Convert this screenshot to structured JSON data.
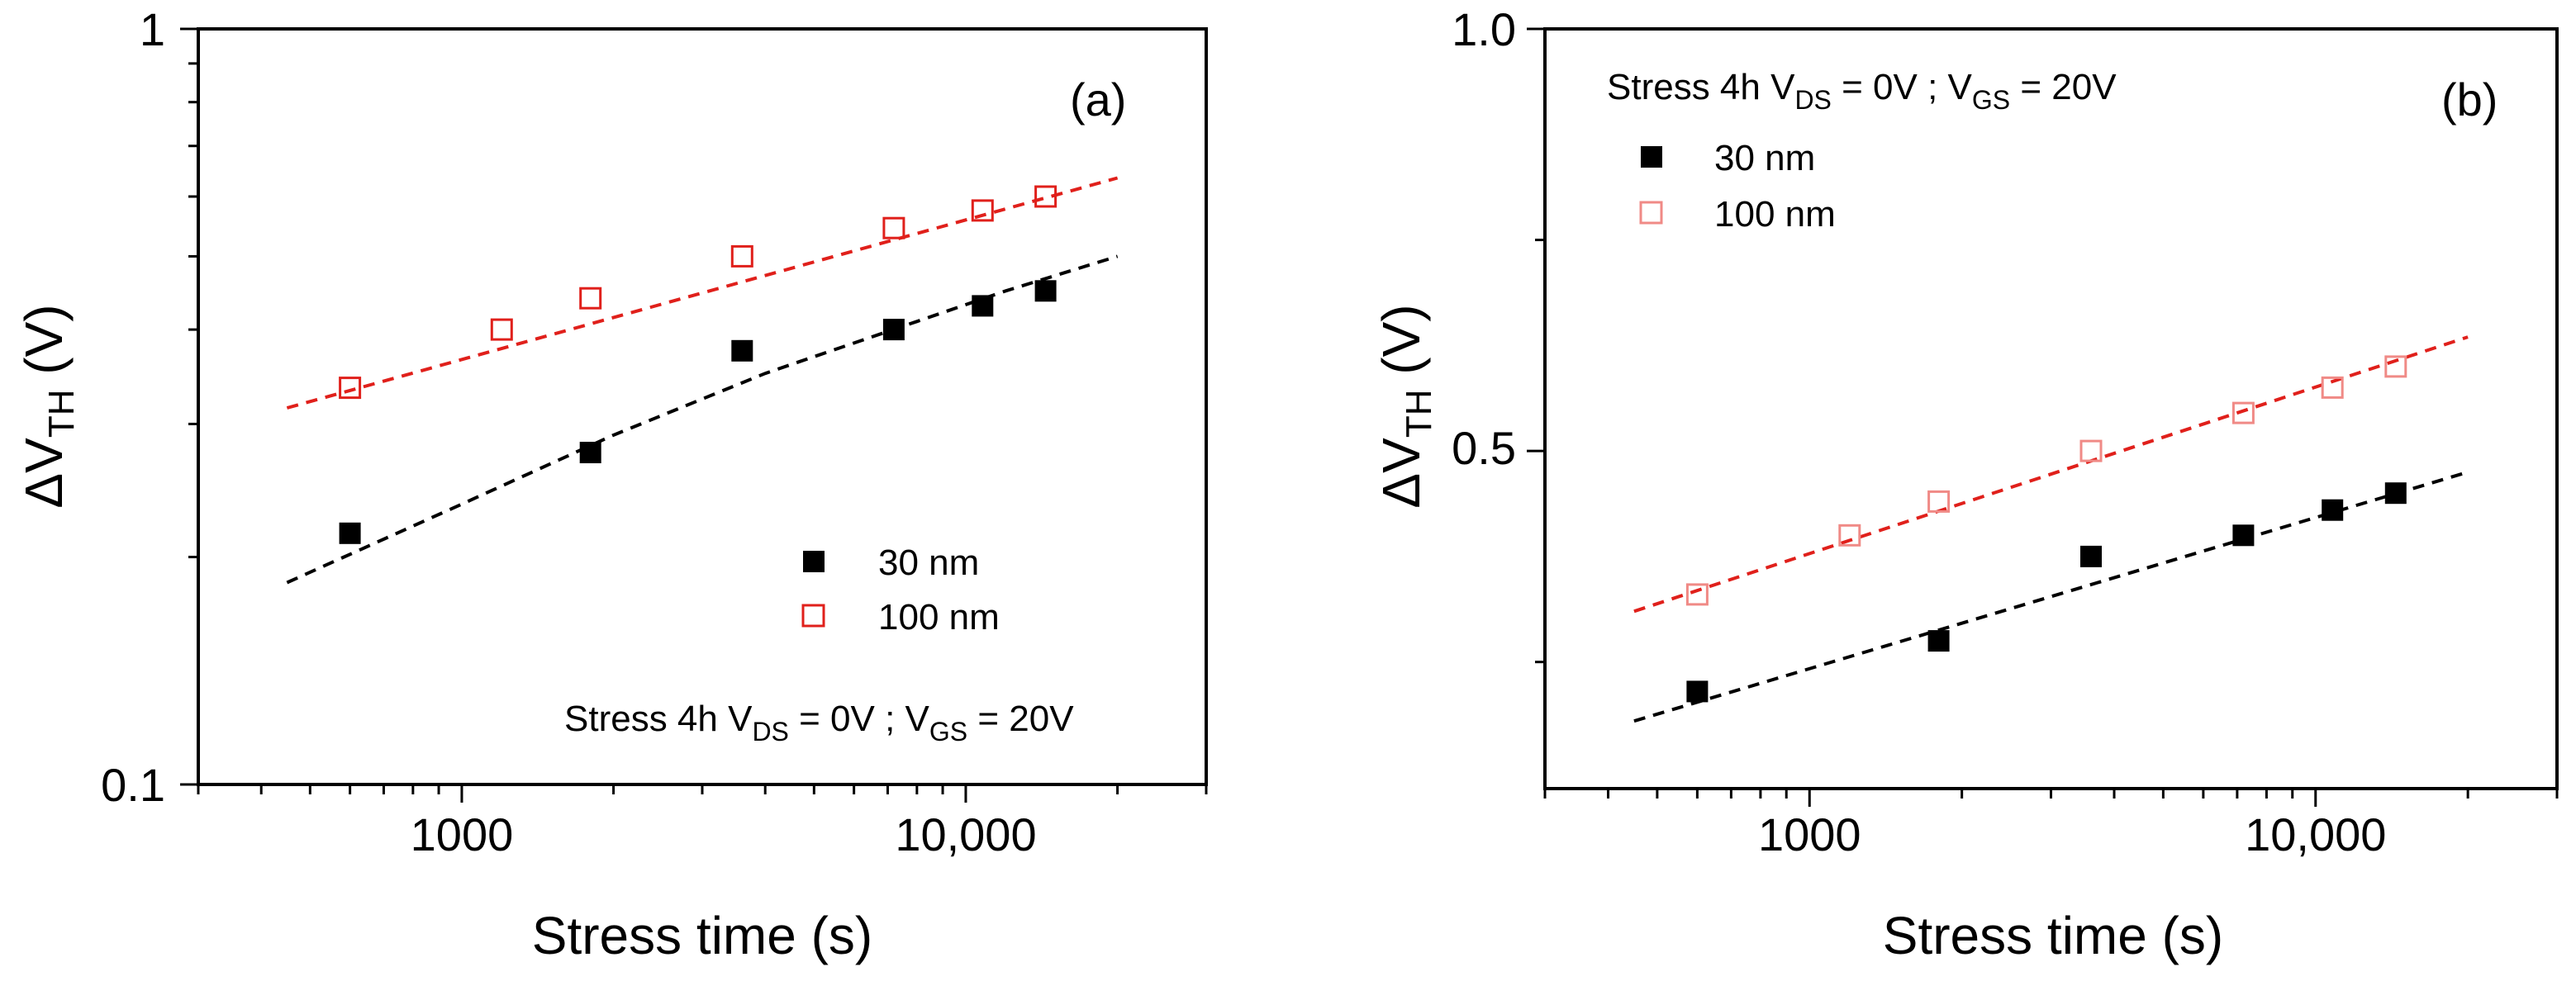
{
  "chart_data": [
    {
      "type": "scatter",
      "panel": "(a)",
      "xscale": "log",
      "yscale": "log",
      "xlim": [
        300,
        30000
      ],
      "ylim": [
        0.1,
        1
      ],
      "xticks": [
        1000,
        10000
      ],
      "xtick_labels": [
        "1000",
        "10,000"
      ],
      "yticks": [
        0.1,
        1
      ],
      "ytick_labels": [
        "0.1",
        "1"
      ],
      "xlabel": "Stress time (s)",
      "ylabel": {
        "main": "ΔV",
        "sub": "TH",
        "unit": " (V)"
      },
      "annotation": {
        "prefix": "Stress 4h V",
        "ds": "DS",
        "mid": " = 0V ; V",
        "gs": "GS",
        "suffix": " = 20V"
      },
      "legend_position": "lower-right",
      "series": [
        {
          "name": "30 nm",
          "marker": "filled-square",
          "color": "#000000",
          "x": [
            600,
            1800,
            3600,
            7200,
            10800,
            14400
          ],
          "y": [
            0.215,
            0.275,
            0.375,
            0.4,
            0.43,
            0.45
          ],
          "fit": {
            "x": [
              450,
              1000,
              2000,
              4000,
              8000,
              12000,
              20000
            ],
            "y": [
              0.185,
              0.235,
              0.29,
              0.35,
              0.41,
              0.45,
              0.5
            ]
          }
        },
        {
          "name": "100 nm",
          "marker": "open-square",
          "color": "#e0201b",
          "x": [
            600,
            1200,
            1800,
            3600,
            7200,
            10800,
            14400
          ],
          "y": [
            0.335,
            0.4,
            0.44,
            0.5,
            0.545,
            0.575,
            0.6
          ],
          "fit": {
            "x": [
              450,
              20000
            ],
            "y": [
              0.315,
              0.635
            ]
          }
        }
      ]
    },
    {
      "type": "scatter",
      "panel": "(b)",
      "xscale": "log",
      "yscale": "linear",
      "xlim": [
        300,
        30000
      ],
      "ylim": [
        0.1,
        1.0
      ],
      "xticks": [
        1000,
        10000
      ],
      "xtick_labels": [
        "1000",
        "10,000"
      ],
      "yticks": [
        0.5,
        1.0
      ],
      "ytick_labels": [
        "0.5",
        "1.0"
      ],
      "xlabel": "Stress time (s)",
      "ylabel": {
        "main": "ΔV",
        "sub": "TH",
        "unit": " (V)"
      },
      "annotation": {
        "prefix": "Stress 4h V",
        "ds": "DS",
        "mid": " = 0V ; V",
        "gs": "GS",
        "suffix": " = 20V"
      },
      "legend_position": "top-left",
      "series": [
        {
          "name": "30 nm",
          "marker": "filled-square",
          "color": "#000000",
          "x": [
            600,
            1800,
            3600,
            7200,
            10800,
            14400
          ],
          "y": [
            0.215,
            0.275,
            0.375,
            0.4,
            0.43,
            0.45
          ],
          "fit": {
            "x": [
              450,
              20000
            ],
            "y": [
              0.18,
              0.475
            ]
          }
        },
        {
          "name": "100 nm",
          "marker": "open-square",
          "color": "#f08a86",
          "x": [
            600,
            1200,
            1800,
            3600,
            7200,
            10800,
            14400
          ],
          "y": [
            0.33,
            0.4,
            0.44,
            0.5,
            0.545,
            0.575,
            0.6
          ],
          "fit": {
            "x": [
              450,
              20000
            ],
            "y": [
              0.31,
              0.635
            ],
            "color": "#e0201b"
          }
        }
      ]
    }
  ]
}
